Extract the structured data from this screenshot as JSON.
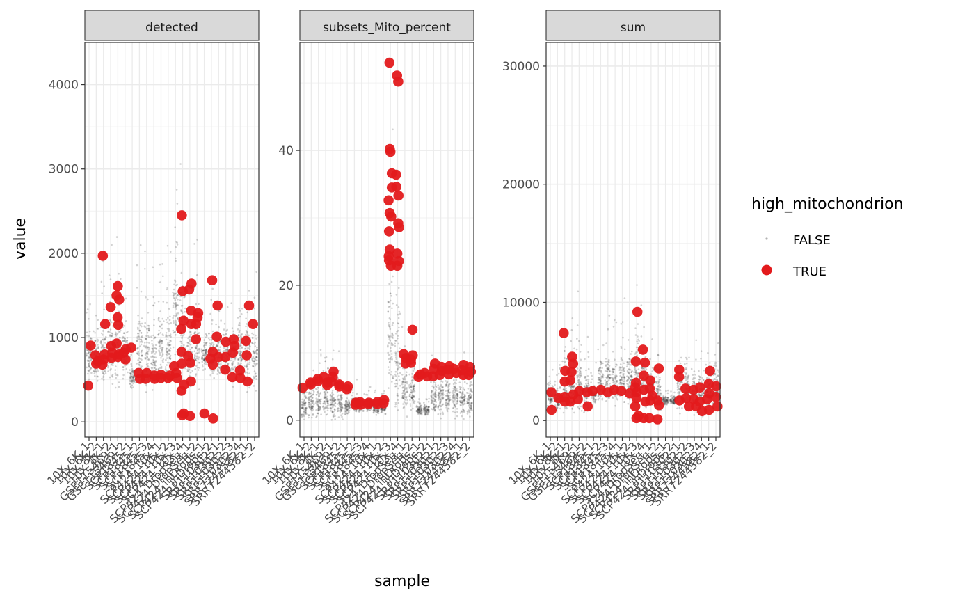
{
  "chart_data": {
    "type": "scatter",
    "subtype": "faceted jittered strip plot",
    "xlabel": "sample",
    "ylabel": "value",
    "legend": {
      "title": "high_mitochondrion",
      "placement": "right",
      "entries": [
        {
          "label": "FALSE",
          "color": "#555555",
          "style": "small faint dot"
        },
        {
          "label": "TRUE",
          "color": "#e31a1c",
          "style": "large red dot"
        }
      ]
    },
    "colors": {
      "false_points": "#333333",
      "true_points": "#e31a1c",
      "strip_fill": "#d9d9d9",
      "grid": "#ebebeb"
    },
    "x_tick_labels": [
      "10X_6K_1",
      "10X_6K_2",
      "10X_8K_1",
      "10X_8K_2",
      "GSE115469_1",
      "GSE115469_2",
      "SCP1845_1",
      "SCP1845_2",
      "SCP1845_3",
      "SCP1845_4",
      "SCP424_10x_1",
      "SCP424_10x_2",
      "SCP424_10x_3",
      "SCP424_10x_4",
      "SCP424_DropSeq_1",
      "SCP424_DropSeq_2",
      "SCP424_inDrops_1",
      "SCP424_inDrops_2",
      "SRP110302_1",
      "SRP110302_2",
      "SRP110302_3",
      "SRP110302_4",
      "SRR7244582_1",
      "SRR7244582_2"
    ],
    "facets": [
      {
        "name": "detected",
        "ylim": [
          -180,
          4500
        ],
        "y_ticks": [
          0,
          1000,
          2000,
          3000,
          4000
        ],
        "y_tick_labels": [
          "0",
          "1000",
          "2000",
          "3000",
          "4000"
        ],
        "false_medians": [
          780,
          750,
          800,
          820,
          900,
          800,
          520,
          850,
          850,
          780,
          860,
          880,
          1350,
          1200,
          800,
          900,
          780,
          800,
          800,
          820,
          760,
          820,
          850,
          800
        ],
        "false_spread": [
          160,
          150,
          200,
          230,
          280,
          200,
          70,
          240,
          260,
          200,
          250,
          260,
          330,
          300,
          200,
          260,
          120,
          160,
          130,
          160,
          170,
          200,
          230,
          200
        ],
        "true_points": [
          [
            1,
            430
          ],
          [
            1,
            905
          ],
          [
            2,
            720
          ],
          [
            2,
            790
          ],
          [
            2,
            690
          ],
          [
            3,
            1970
          ],
          [
            3,
            1160
          ],
          [
            3,
            800
          ],
          [
            3,
            680
          ],
          [
            3,
            740
          ],
          [
            4,
            1360
          ],
          [
            4,
            820
          ],
          [
            4,
            900
          ],
          [
            4,
            760
          ],
          [
            5,
            1610
          ],
          [
            5,
            1500
          ],
          [
            5,
            1450
          ],
          [
            5,
            1240
          ],
          [
            5,
            1150
          ],
          [
            5,
            930
          ],
          [
            5,
            800
          ],
          [
            5,
            770
          ],
          [
            6,
            860
          ],
          [
            6,
            820
          ],
          [
            6,
            740
          ],
          [
            7,
            880
          ],
          [
            8,
            580
          ],
          [
            8,
            510
          ],
          [
            9,
            580
          ],
          [
            9,
            510
          ],
          [
            10,
            550
          ],
          [
            10,
            510
          ],
          [
            11,
            560
          ],
          [
            11,
            520
          ],
          [
            12,
            550
          ],
          [
            12,
            520
          ],
          [
            13,
            660
          ],
          [
            13,
            580
          ],
          [
            13,
            520
          ],
          [
            14,
            2450
          ],
          [
            14,
            1550
          ],
          [
            14,
            1200
          ],
          [
            14,
            1100
          ],
          [
            14,
            830
          ],
          [
            14,
            690
          ],
          [
            14,
            440
          ],
          [
            14,
            370
          ],
          [
            14,
            100
          ],
          [
            14,
            80
          ],
          [
            15,
            1640
          ],
          [
            15,
            1570
          ],
          [
            15,
            1320
          ],
          [
            15,
            1160
          ],
          [
            15,
            780
          ],
          [
            15,
            700
          ],
          [
            15,
            480
          ],
          [
            15,
            70
          ],
          [
            16,
            1290
          ],
          [
            16,
            1240
          ],
          [
            16,
            1160
          ],
          [
            16,
            980
          ],
          [
            17,
            100
          ],
          [
            18,
            1680
          ],
          [
            18,
            830
          ],
          [
            18,
            750
          ],
          [
            18,
            680
          ],
          [
            18,
            40
          ],
          [
            19,
            1380
          ],
          [
            19,
            1010
          ],
          [
            19,
            770
          ],
          [
            20,
            950
          ],
          [
            20,
            770
          ],
          [
            20,
            620
          ],
          [
            21,
            900
          ],
          [
            21,
            980
          ],
          [
            21,
            820
          ],
          [
            21,
            530
          ],
          [
            22,
            610
          ],
          [
            22,
            520
          ],
          [
            23,
            1380
          ],
          [
            23,
            960
          ],
          [
            23,
            790
          ],
          [
            23,
            480
          ],
          [
            24,
            1160
          ]
        ]
      },
      {
        "name": "subsets_Mito_percent",
        "ylim": [
          -2.5,
          56
        ],
        "y_ticks": [
          0,
          20,
          40
        ],
        "y_tick_labels": [
          "0",
          "20",
          "40"
        ],
        "false_medians": [
          2.2,
          2.4,
          2.6,
          2.8,
          2.6,
          2.3,
          2.0,
          2.4,
          2.2,
          2.3,
          1.8,
          1.8,
          12.0,
          9.0,
          4.5,
          4.0,
          1.5,
          1.5,
          3.5,
          3.3,
          3.6,
          3.5,
          3.2,
          3.0
        ],
        "false_spread": [
          1.2,
          1.3,
          1.3,
          1.5,
          1.4,
          1.2,
          0.6,
          0.7,
          0.6,
          0.6,
          0.5,
          0.5,
          5.0,
          4.0,
          2.0,
          1.8,
          0.4,
          0.4,
          1.6,
          1.5,
          1.6,
          1.5,
          1.4,
          1.4
        ],
        "true_points": [
          [
            1,
            4.8
          ],
          [
            2,
            5.3
          ],
          [
            2,
            5.6
          ],
          [
            3,
            5.8
          ],
          [
            3,
            6.1
          ],
          [
            4,
            6.4
          ],
          [
            4,
            5.6
          ],
          [
            4,
            5.2
          ],
          [
            5,
            7.2
          ],
          [
            5,
            6.4
          ],
          [
            5,
            5.7
          ],
          [
            6,
            5.3
          ],
          [
            6,
            5.0
          ],
          [
            7,
            5.0
          ],
          [
            7,
            4.6
          ],
          [
            8,
            2.6
          ],
          [
            8,
            2.3
          ],
          [
            9,
            2.7
          ],
          [
            9,
            2.3
          ],
          [
            10,
            2.6
          ],
          [
            10,
            2.4
          ],
          [
            11,
            2.7
          ],
          [
            11,
            2.4
          ],
          [
            12,
            3.0
          ],
          [
            12,
            2.5
          ],
          [
            13,
            53.0
          ],
          [
            13,
            40.2
          ],
          [
            13,
            39.8
          ],
          [
            13,
            36.6
          ],
          [
            13,
            34.5
          ],
          [
            13,
            32.6
          ],
          [
            13,
            30.7
          ],
          [
            13,
            30.2
          ],
          [
            13,
            28.0
          ],
          [
            13,
            25.3
          ],
          [
            13,
            24.3
          ],
          [
            13,
            23.7
          ],
          [
            13,
            22.9
          ],
          [
            14,
            51.1
          ],
          [
            14,
            50.2
          ],
          [
            14,
            36.4
          ],
          [
            14,
            34.6
          ],
          [
            14,
            33.3
          ],
          [
            14,
            29.2
          ],
          [
            14,
            28.6
          ],
          [
            14,
            24.7
          ],
          [
            14,
            23.6
          ],
          [
            14,
            22.9
          ],
          [
            15,
            9.8
          ],
          [
            15,
            9.2
          ],
          [
            15,
            8.4
          ],
          [
            16,
            13.4
          ],
          [
            16,
            9.6
          ],
          [
            16,
            9.0
          ],
          [
            16,
            8.5
          ],
          [
            17,
            6.8
          ],
          [
            17,
            6.4
          ],
          [
            18,
            7.0
          ],
          [
            18,
            6.5
          ],
          [
            19,
            8.4
          ],
          [
            19,
            7.6
          ],
          [
            19,
            6.5
          ],
          [
            20,
            7.9
          ],
          [
            20,
            7.3
          ],
          [
            20,
            6.7
          ],
          [
            21,
            8.0
          ],
          [
            21,
            7.5
          ],
          [
            21,
            6.8
          ],
          [
            22,
            7.6
          ],
          [
            22,
            7.0
          ],
          [
            23,
            8.2
          ],
          [
            23,
            7.4
          ],
          [
            23,
            6.7
          ],
          [
            24,
            7.9
          ],
          [
            24,
            7.2
          ],
          [
            24,
            6.7
          ]
        ]
      },
      {
        "name": "sum",
        "ylim": [
          -1400,
          32000
        ],
        "y_ticks": [
          0,
          10000,
          20000,
          30000
        ],
        "y_tick_labels": [
          "0",
          "10000",
          "20000",
          "30000"
        ],
        "false_medians": [
          2000,
          1700,
          2300,
          2600,
          3000,
          2400,
          2300,
          3300,
          3600,
          3300,
          3500,
          3600,
          4200,
          3700,
          2500,
          2300,
          1700,
          1700,
          2800,
          2700,
          2400,
          2500,
          2800,
          2700
        ],
        "false_spread": [
          600,
          500,
          900,
          1100,
          1200,
          900,
          500,
          1100,
          1200,
          1000,
          1100,
          1200,
          1500,
          1300,
          900,
          800,
          200,
          200,
          1100,
          1000,
          900,
          1000,
          1100,
          1000
        ],
        "true_points": [
          [
            1,
            2400
          ],
          [
            1,
            900
          ],
          [
            2,
            1900
          ],
          [
            3,
            7400
          ],
          [
            3,
            4200
          ],
          [
            3,
            3300
          ],
          [
            3,
            2000
          ],
          [
            3,
            1600
          ],
          [
            4,
            5400
          ],
          [
            4,
            4800
          ],
          [
            4,
            4100
          ],
          [
            4,
            3400
          ],
          [
            4,
            2200
          ],
          [
            4,
            1600
          ],
          [
            5,
            2500
          ],
          [
            5,
            1800
          ],
          [
            6,
            2400
          ],
          [
            6,
            1200
          ],
          [
            7,
            2500
          ],
          [
            8,
            2600
          ],
          [
            9,
            2400
          ],
          [
            10,
            2600
          ],
          [
            11,
            2500
          ],
          [
            12,
            2300
          ],
          [
            13,
            9200
          ],
          [
            13,
            5000
          ],
          [
            13,
            3200
          ],
          [
            13,
            2800
          ],
          [
            13,
            2400
          ],
          [
            13,
            1900
          ],
          [
            13,
            1200
          ],
          [
            13,
            400
          ],
          [
            13,
            200
          ],
          [
            14,
            6000
          ],
          [
            14,
            4900
          ],
          [
            14,
            3800
          ],
          [
            14,
            2600
          ],
          [
            14,
            1600
          ],
          [
            14,
            200
          ],
          [
            15,
            3400
          ],
          [
            15,
            2700
          ],
          [
            15,
            2100
          ],
          [
            15,
            1700
          ],
          [
            15,
            200
          ],
          [
            16,
            4400
          ],
          [
            16,
            1700
          ],
          [
            16,
            1300
          ],
          [
            16,
            100
          ],
          [
            19,
            4300
          ],
          [
            19,
            3700
          ],
          [
            19,
            1700
          ],
          [
            20,
            2700
          ],
          [
            20,
            1900
          ],
          [
            20,
            1200
          ],
          [
            21,
            2600
          ],
          [
            21,
            1800
          ],
          [
            21,
            1200
          ],
          [
            22,
            2800
          ],
          [
            22,
            1600
          ],
          [
            22,
            800
          ],
          [
            23,
            4200
          ],
          [
            23,
            3100
          ],
          [
            23,
            2300
          ],
          [
            23,
            1800
          ],
          [
            23,
            900
          ],
          [
            24,
            2900
          ],
          [
            24,
            2000
          ],
          [
            24,
            1200
          ]
        ]
      }
    ]
  }
}
